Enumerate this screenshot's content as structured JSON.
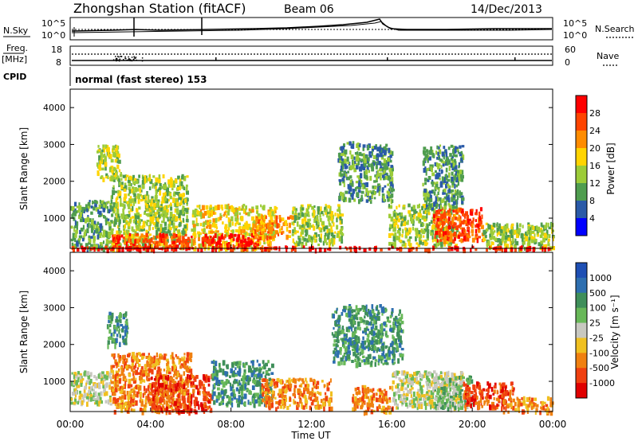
{
  "header": {
    "station": "Zhongshan Station (fitACF)",
    "beam": "Beam 06",
    "date": "14/Dec/2013"
  },
  "noise_panel": {
    "left_label": "N.Sky",
    "right_label": "N.Search",
    "left_ticks": [
      "10^5",
      "10^0"
    ],
    "right_ticks": [
      "10^5",
      "10^0"
    ]
  },
  "freq_panel": {
    "left_label": "Freq.",
    "left_unit": "[MHz]",
    "right_label": "Nave",
    "left_ticks": [
      "18",
      "8"
    ],
    "right_ticks": [
      "60",
      "0"
    ]
  },
  "cpid": {
    "label": "CPID",
    "value": "normal (fast stereo) 153"
  },
  "chart_data": [
    {
      "type": "heatmap",
      "panel": "power",
      "title": "",
      "ylabel": "Slant Range [km]",
      "xlabel": "",
      "xlim": [
        "00:00",
        "00:00"
      ],
      "ylim": [
        180,
        4500
      ],
      "y_ticks": [
        "4000",
        "3000",
        "2000",
        "1000"
      ],
      "colorbar_label": "Power [dB]",
      "colorbar_ticks": [
        "28",
        "24",
        "20",
        "16",
        "12",
        "8",
        "4"
      ],
      "colorbar_colors": [
        "#ff0000",
        "#ff4400",
        "#ff8c00",
        "#ffd400",
        "#9ccc38",
        "#4f9d4f",
        "#2a5aa8",
        "#0000ff"
      ],
      "scatter_regions": [
        {
          "t0": 0.0,
          "t1": 2.0,
          "r0": 200,
          "r1": 1500,
          "level": 2
        },
        {
          "t0": 1.3,
          "t1": 2.5,
          "r0": 2100,
          "r1": 3000,
          "level": 3
        },
        {
          "t0": 2.0,
          "t1": 5.8,
          "r0": 200,
          "r1": 2200,
          "level": 3
        },
        {
          "t0": 2.0,
          "t1": 6.0,
          "r0": 200,
          "r1": 600,
          "level": 6
        },
        {
          "t0": 6.0,
          "t1": 10.2,
          "r0": 200,
          "r1": 1400,
          "level": 4
        },
        {
          "t0": 6.5,
          "t1": 9.5,
          "r0": 250,
          "r1": 600,
          "level": 7
        },
        {
          "t0": 9.0,
          "t1": 11.0,
          "r0": 500,
          "r1": 1100,
          "level": 5
        },
        {
          "t0": 11.0,
          "t1": 13.5,
          "r0": 300,
          "r1": 1400,
          "level": 3
        },
        {
          "t0": 13.3,
          "t1": 16.0,
          "r0": 1500,
          "r1": 3100,
          "level": 2
        },
        {
          "t0": 15.8,
          "t1": 19.2,
          "r0": 300,
          "r1": 1400,
          "level": 3
        },
        {
          "t0": 18.0,
          "t1": 20.5,
          "r0": 400,
          "r1": 1300,
          "level": 6
        },
        {
          "t0": 17.5,
          "t1": 19.5,
          "r0": 1300,
          "r1": 3000,
          "level": 2
        },
        {
          "t0": 20.5,
          "t1": 24.0,
          "r0": 200,
          "r1": 900,
          "level": 3
        },
        {
          "t0": 0.0,
          "t1": 24.0,
          "r0": 180,
          "r1": 260,
          "level": 7
        }
      ]
    },
    {
      "type": "heatmap",
      "panel": "velocity",
      "title": "",
      "ylabel": "Slant Range [km]",
      "xlabel": "Time UT",
      "x_ticks": [
        "00:00",
        "04:00",
        "08:00",
        "12:00",
        "16:00",
        "20:00",
        "00:00"
      ],
      "ylim": [
        180,
        4500
      ],
      "y_ticks": [
        "4000",
        "3000",
        "2000",
        "1000"
      ],
      "colorbar_label": "Velocity [m s⁻¹]",
      "colorbar_ticks": [
        "1000",
        "500",
        "100",
        "25",
        "-25",
        "-100",
        "-500",
        "-1000"
      ],
      "colorbar_colors": [
        "#1e4fb4",
        "#2e6fb0",
        "#3f8f5a",
        "#68b858",
        "#c8c8c0",
        "#f0c020",
        "#f08010",
        "#f04010",
        "#e00000"
      ],
      "scatter_regions": [
        {
          "t0": 0.0,
          "t1": 2.0,
          "r0": 400,
          "r1": 1300,
          "level": 4
        },
        {
          "t0": 1.8,
          "t1": 2.8,
          "r0": 2000,
          "r1": 2900,
          "level": 6
        },
        {
          "t0": 2.0,
          "t1": 6.0,
          "r0": 200,
          "r1": 1800,
          "level": 2
        },
        {
          "t0": 4.0,
          "t1": 7.0,
          "r0": 200,
          "r1": 1200,
          "level": 1
        },
        {
          "t0": 7.0,
          "t1": 10.0,
          "r0": 400,
          "r1": 1600,
          "level": 6
        },
        {
          "t0": 9.5,
          "t1": 13.0,
          "r0": 300,
          "r1": 1100,
          "level": 2
        },
        {
          "t0": 13.0,
          "t1": 16.5,
          "r0": 1500,
          "r1": 3100,
          "level": 6
        },
        {
          "t0": 14.0,
          "t1": 16.0,
          "r0": 200,
          "r1": 900,
          "level": 2
        },
        {
          "t0": 16.0,
          "t1": 19.5,
          "r0": 300,
          "r1": 1300,
          "level": 4
        },
        {
          "t0": 18.0,
          "t1": 20.0,
          "r0": 300,
          "r1": 1200,
          "level": 5
        },
        {
          "t0": 19.5,
          "t1": 22.0,
          "r0": 300,
          "r1": 1000,
          "level": 1
        },
        {
          "t0": 21.5,
          "t1": 24.0,
          "r0": 200,
          "r1": 600,
          "level": 2
        }
      ]
    }
  ]
}
